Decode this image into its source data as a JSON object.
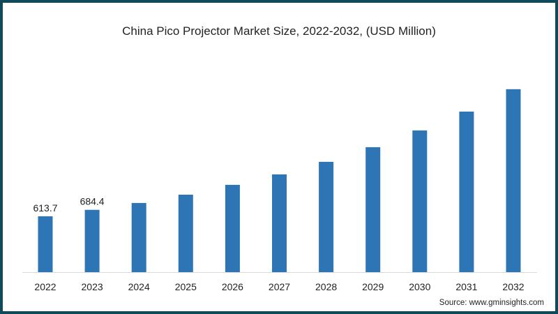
{
  "chart_data": {
    "type": "bar",
    "title": "China Pico Projector Market Size, 2022-2032, (USD Million)",
    "xlabel": "",
    "ylabel": "",
    "categories": [
      "2022",
      "2023",
      "2024",
      "2025",
      "2026",
      "2027",
      "2028",
      "2029",
      "2030",
      "2031",
      "2032"
    ],
    "values": [
      613.7,
      684.4,
      760,
      851,
      959,
      1074,
      1212,
      1373,
      1557,
      1764,
      2010
    ],
    "data_labels": {
      "2022": "613.7",
      "2023": "684.4"
    },
    "ylim": [
      0,
      2300
    ],
    "grid": false,
    "legend": "none",
    "bar_color": "#2e75b6",
    "source": "Source: www.gminsights.com"
  },
  "colors": {
    "frame": "#0f4a5a",
    "axis": "#d9d9d9"
  }
}
